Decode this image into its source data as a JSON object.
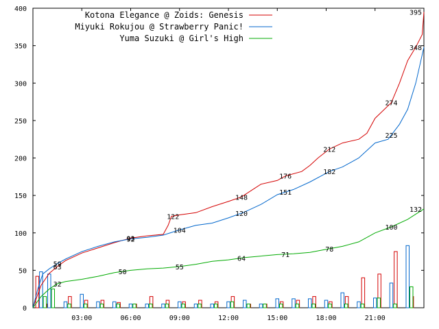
{
  "chart_data": {
    "type": "line",
    "title": "",
    "xlabel": "",
    "ylabel": "",
    "ylim": [
      0,
      400
    ],
    "xlim_hours": [
      0,
      24
    ],
    "yticks": [
      0,
      50,
      100,
      150,
      200,
      250,
      300,
      350,
      400
    ],
    "xticks": [
      {
        "hour": 3,
        "label": "03:00"
      },
      {
        "hour": 6,
        "label": "06:00"
      },
      {
        "hour": 9,
        "label": "09:00"
      },
      {
        "hour": 12,
        "label": "12:00"
      },
      {
        "hour": 15,
        "label": "15:00"
      },
      {
        "hour": 18,
        "label": "18:00"
      },
      {
        "hour": 21,
        "label": "21:00"
      }
    ],
    "legend_position": "top-right",
    "grid": false,
    "series": [
      {
        "name": "Kotona Elegance @ Zoids: Genesis",
        "color": "#d40000",
        "points": [
          [
            0,
            0
          ],
          [
            0.5,
            30
          ],
          [
            1,
            46
          ],
          [
            1.5,
            55
          ],
          [
            2,
            63
          ],
          [
            3,
            73
          ],
          [
            4,
            80
          ],
          [
            5,
            87
          ],
          [
            6,
            93
          ],
          [
            7,
            96
          ],
          [
            8,
            98
          ],
          [
            8.3,
            110
          ],
          [
            8.5,
            122
          ],
          [
            9,
            124
          ],
          [
            10,
            127
          ],
          [
            11,
            135
          ],
          [
            12,
            142
          ],
          [
            12.8,
            148
          ],
          [
            13.5,
            158
          ],
          [
            14,
            165
          ],
          [
            15,
            170
          ],
          [
            15.5,
            176
          ],
          [
            16.5,
            182
          ],
          [
            17,
            190
          ],
          [
            17.5,
            200
          ],
          [
            18.2,
            212
          ],
          [
            19,
            220
          ],
          [
            20,
            225
          ],
          [
            20.5,
            233
          ],
          [
            21,
            253
          ],
          [
            22,
            274
          ],
          [
            22.5,
            300
          ],
          [
            23,
            330
          ],
          [
            23.5,
            348
          ],
          [
            23.9,
            365
          ],
          [
            24,
            395
          ]
        ],
        "labels": [
          [
            1.5,
            "63"
          ],
          [
            6,
            "93"
          ],
          [
            8.6,
            "122"
          ],
          [
            12.8,
            "148"
          ],
          [
            15.5,
            "176"
          ],
          [
            18.2,
            "212"
          ],
          [
            22,
            "274"
          ],
          [
            24,
            "395"
          ]
        ],
        "bars": [
          [
            0.5,
            42
          ],
          [
            1,
            5
          ],
          [
            2.5,
            15
          ],
          [
            3.5,
            10
          ],
          [
            4.5,
            10
          ],
          [
            5.5,
            7
          ],
          [
            6.5,
            5
          ],
          [
            7.5,
            15
          ],
          [
            8.5,
            10
          ],
          [
            9.5,
            8
          ],
          [
            10.5,
            10
          ],
          [
            11.5,
            8
          ],
          [
            12.5,
            15
          ],
          [
            13.5,
            5
          ],
          [
            14.5,
            5
          ],
          [
            15.5,
            8
          ],
          [
            16.5,
            10
          ],
          [
            17.5,
            15
          ],
          [
            18.5,
            8
          ],
          [
            19.5,
            15
          ],
          [
            20.5,
            40
          ],
          [
            21.5,
            45
          ],
          [
            22.5,
            75
          ],
          [
            23.5,
            15
          ]
        ]
      },
      {
        "name": "Miyuki Rokujou @ Strawberry Panic!",
        "color": "#0066cc",
        "points": [
          [
            0,
            0
          ],
          [
            0.3,
            25
          ],
          [
            0.6,
            45
          ],
          [
            1,
            52
          ],
          [
            1.5,
            59
          ],
          [
            2,
            65
          ],
          [
            3,
            75
          ],
          [
            4,
            82
          ],
          [
            5,
            88
          ],
          [
            6,
            92
          ],
          [
            7,
            94
          ],
          [
            8,
            97
          ],
          [
            9,
            104
          ],
          [
            10,
            110
          ],
          [
            11,
            113
          ],
          [
            12,
            120
          ],
          [
            13,
            128
          ],
          [
            14,
            138
          ],
          [
            15,
            151
          ],
          [
            16,
            158
          ],
          [
            17,
            168
          ],
          [
            18.2,
            182
          ],
          [
            19,
            188
          ],
          [
            20,
            200
          ],
          [
            21,
            220
          ],
          [
            21.8,
            225
          ],
          [
            22.5,
            245
          ],
          [
            23,
            265
          ],
          [
            23.5,
            300
          ],
          [
            24,
            348
          ]
        ],
        "labels": [
          [
            1.5,
            "59"
          ],
          [
            6,
            "92"
          ],
          [
            9,
            "104"
          ],
          [
            12.8,
            "120"
          ],
          [
            15.5,
            "151"
          ],
          [
            18.2,
            "182"
          ],
          [
            22,
            "225"
          ],
          [
            24,
            "348"
          ]
        ],
        "bars": [
          [
            0.5,
            48
          ],
          [
            1,
            45
          ],
          [
            2,
            8
          ],
          [
            3,
            18
          ],
          [
            4,
            8
          ],
          [
            5,
            8
          ],
          [
            6,
            5
          ],
          [
            7,
            5
          ],
          [
            8,
            5
          ],
          [
            9,
            8
          ],
          [
            10,
            5
          ],
          [
            11,
            5
          ],
          [
            12,
            8
          ],
          [
            13,
            10
          ],
          [
            14,
            5
          ],
          [
            15,
            12
          ],
          [
            16,
            12
          ],
          [
            17,
            12
          ],
          [
            18,
            10
          ],
          [
            19,
            20
          ],
          [
            20,
            8
          ],
          [
            21,
            13
          ],
          [
            22,
            33
          ],
          [
            23,
            83
          ]
        ]
      },
      {
        "name": "Yuma Suzuki @ Girl's High",
        "color": "#00aa00",
        "points": [
          [
            0,
            0
          ],
          [
            0.5,
            15
          ],
          [
            1,
            25
          ],
          [
            1.5,
            32
          ],
          [
            2,
            35
          ],
          [
            3,
            38
          ],
          [
            4,
            42
          ],
          [
            5,
            47
          ],
          [
            6,
            50
          ],
          [
            7,
            52
          ],
          [
            8,
            53
          ],
          [
            9,
            55
          ],
          [
            10,
            58
          ],
          [
            11,
            62
          ],
          [
            12,
            64
          ],
          [
            13,
            67
          ],
          [
            14,
            69
          ],
          [
            15,
            71
          ],
          [
            16,
            72
          ],
          [
            17,
            74
          ],
          [
            18,
            78
          ],
          [
            19,
            82
          ],
          [
            20,
            88
          ],
          [
            21,
            100
          ],
          [
            22,
            108
          ],
          [
            23,
            118
          ],
          [
            24,
            132
          ]
        ],
        "labels": [
          [
            1.5,
            "32"
          ],
          [
            5.5,
            "50"
          ],
          [
            9,
            "55"
          ],
          [
            12.8,
            "64"
          ],
          [
            15.5,
            "71"
          ],
          [
            18.2,
            "78"
          ],
          [
            22,
            "100"
          ],
          [
            24,
            "132"
          ]
        ],
        "bars": [
          [
            0.5,
            15
          ],
          [
            1,
            25
          ],
          [
            2,
            5
          ],
          [
            3,
            5
          ],
          [
            4,
            5
          ],
          [
            5,
            5
          ],
          [
            6,
            5
          ],
          [
            7,
            5
          ],
          [
            8,
            5
          ],
          [
            9,
            5
          ],
          [
            10,
            5
          ],
          [
            11,
            5
          ],
          [
            12,
            8
          ],
          [
            13,
            5
          ],
          [
            14,
            5
          ],
          [
            15,
            5
          ],
          [
            16,
            5
          ],
          [
            17,
            5
          ],
          [
            18,
            5
          ],
          [
            19,
            5
          ],
          [
            20,
            5
          ],
          [
            21,
            13
          ],
          [
            22,
            5
          ],
          [
            23,
            28
          ]
        ]
      }
    ]
  }
}
